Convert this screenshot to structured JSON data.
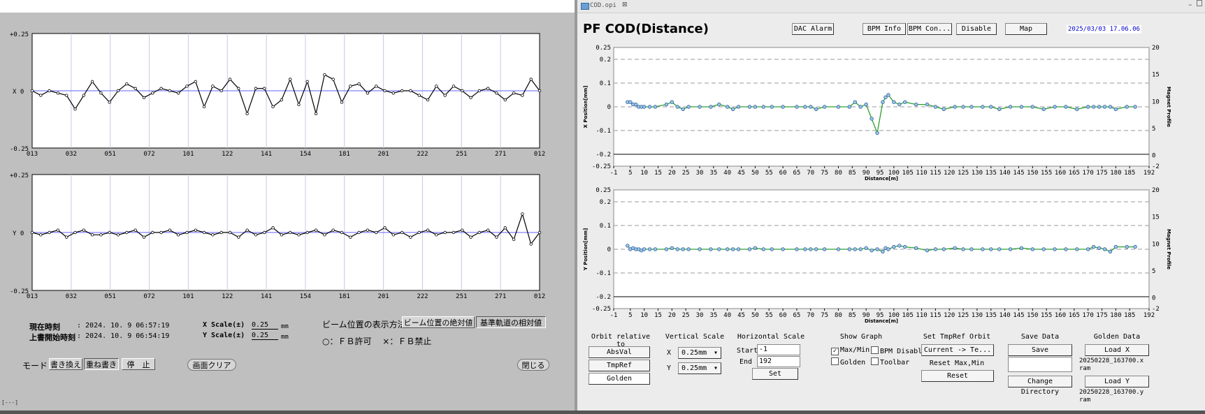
{
  "left_panel": {
    "plot_x": {
      "y_top": "+0.25",
      "y_mid": "X  0",
      "y_bot": "-0.25",
      "ticks": [
        "013",
        "032",
        "051",
        "072",
        "101",
        "122",
        "141",
        "154",
        "181",
        "201",
        "222",
        "251",
        "271",
        "012"
      ],
      "values": [
        0.0,
        -0.02,
        0.0,
        -0.01,
        -0.02,
        -0.08,
        -0.02,
        0.04,
        -0.01,
        -0.05,
        0.0,
        0.03,
        0.01,
        -0.03,
        -0.01,
        0.01,
        0.0,
        -0.01,
        0.02,
        0.04,
        -0.07,
        0.02,
        0.0,
        0.05,
        0.01,
        -0.1,
        0.01,
        0.01,
        -0.07,
        -0.04,
        0.05,
        -0.06,
        0.04,
        -0.1,
        0.07,
        0.05,
        -0.05,
        0.02,
        0.03,
        -0.01,
        0.02,
        0.0,
        -0.01,
        0.0,
        0.0,
        -0.02,
        -0.04,
        0.02,
        -0.02,
        0.02,
        0.0,
        -0.03,
        0.0,
        0.01,
        -0.01,
        -0.04,
        -0.01,
        -0.02,
        0.05,
        0.0
      ]
    },
    "plot_y": {
      "y_top": "+0.25",
      "y_mid": "Y  0",
      "y_bot": "-0.25",
      "ticks": [
        "013",
        "032",
        "051",
        "072",
        "101",
        "122",
        "141",
        "154",
        "181",
        "201",
        "222",
        "251",
        "271",
        "012"
      ],
      "values": [
        0.0,
        -0.01,
        0.0,
        0.01,
        -0.02,
        0.0,
        0.01,
        -0.01,
        -0.01,
        0.0,
        -0.01,
        0.0,
        0.01,
        -0.02,
        0.0,
        0.0,
        0.01,
        -0.01,
        0.0,
        0.01,
        0.0,
        -0.01,
        0.0,
        0.0,
        -0.02,
        0.01,
        -0.01,
        0.0,
        0.02,
        -0.01,
        0.0,
        -0.01,
        0.0,
        0.01,
        -0.01,
        0.01,
        0.0,
        -0.02,
        0.0,
        0.01,
        0.0,
        0.02,
        -0.01,
        0.0,
        -0.02,
        0.0,
        0.01,
        -0.01,
        0.0,
        0.0,
        0.01,
        -0.02,
        0.0,
        0.01,
        -0.02,
        0.02,
        -0.03,
        0.08,
        -0.05,
        0.0
      ]
    },
    "status": {
      "current_time_label": "現在時刻",
      "current_time_value": ": 2024. 10.  9    06:57:19",
      "overwrite_time_label": "上書開始時刻",
      "overwrite_time_value": ": 2024. 10.  9    06:54:19",
      "x_scale_label": "X  Scale(±)",
      "x_scale_value": "0.25",
      "y_scale_label": "Y  Scale(±)",
      "y_scale_value": "0.25",
      "unit": "mm",
      "display_method_label": "ビーム位置の表示方法",
      "abs_btn": "ビーム位置の絶対値",
      "rel_btn": "基準軌道の相対値",
      "legend_text": "○：ＦＢ許可　 ×：ＦＢ禁止"
    },
    "mode": {
      "label": "モード",
      "rewrite": "書き換え",
      "overwrite": "重ね書き",
      "stop": "停　止",
      "clear": "画面クリア",
      "close": "閉じる"
    },
    "corner_mark": "[---]"
  },
  "right_panel": {
    "tab_title": "COD.opi",
    "title": "PF COD(Distance)",
    "buttons": {
      "dac_alarm": "DAC Alarm",
      "bpm_info": "BPM Info",
      "bpm_con": "BPM Con...",
      "disable": "Disable",
      "map": "Map"
    },
    "timestamp": "2025/03/03 17.06.06",
    "x_chart": {
      "y_left_ticks": [
        "0.25",
        "0.2",
        "0.1",
        "0",
        "-0.1",
        "-0.2",
        "-0.25"
      ],
      "y_right_ticks": [
        "20",
        "15",
        "10",
        "5",
        "0",
        "-2"
      ],
      "ylabel": "X Position[mm]",
      "y2label": "Magnet Profile",
      "xlabel": "Distance[m]",
      "x_ticks": [
        "-1",
        "5",
        "10",
        "15",
        "20",
        "25",
        "30",
        "35",
        "40",
        "45",
        "50",
        "55",
        "60",
        "65",
        "70",
        "75",
        "80",
        "85",
        "90",
        "95",
        "100",
        "105",
        "110",
        "115",
        "120",
        "125",
        "130",
        "135",
        "140",
        "145",
        "150",
        "155",
        "160",
        "165",
        "170",
        "175",
        "180",
        "185",
        "192"
      ]
    },
    "y_chart": {
      "y_left_ticks": [
        "0.25",
        "0.2",
        "0.1",
        "0",
        "-0.1",
        "-0.2",
        "-0.25"
      ],
      "y_right_ticks": [
        "20",
        "15",
        "10",
        "5",
        "0",
        "-2"
      ],
      "ylabel": "Y Position[mm]",
      "y2label": "Magnet Profile",
      "xlabel": "Distance[m]",
      "x_ticks": [
        "-1",
        "5",
        "10",
        "15",
        "20",
        "25",
        "30",
        "35",
        "40",
        "45",
        "50",
        "55",
        "60",
        "65",
        "70",
        "75",
        "80",
        "85",
        "90",
        "95",
        "100",
        "105",
        "110",
        "115",
        "120",
        "125",
        "130",
        "135",
        "140",
        "145",
        "150",
        "155",
        "160",
        "165",
        "170",
        "175",
        "180",
        "185",
        "192"
      ]
    },
    "controls": {
      "orbit_relative_to": "Orbit relative to",
      "absval": "AbsVal",
      "tmpref": "TmpRef",
      "golden": "Golden",
      "vertical_scale": "Vertical Scale",
      "vs_x_label": "X",
      "vs_x_value": "0.25mm",
      "vs_y_label": "Y",
      "vs_y_value": "0.25mm",
      "horizontal_scale": "Horizontal Scale",
      "start_label": "Start",
      "start_value": "-1",
      "end_label": "End",
      "end_value": "192",
      "set": "Set",
      "show_graph": "Show Graph",
      "max_min": "Max/Min",
      "bpm_disable": "BPM Disable",
      "golden_chk": "Golden",
      "toolbar": "Toolbar",
      "set_tmpref_orbit": "Set TmpRef Orbit",
      "current_to": "Current -> Te...",
      "reset_max_min": "Reset Max,Min",
      "reset": "Reset",
      "save_data": "Save Data",
      "save": "Save",
      "change_directory": "Change Directory",
      "golden_data": "Golden Data",
      "load_x": "Load X",
      "load_x_file": "20250228_163700.x",
      "load_x_file2": "ram",
      "load_y": "Load Y",
      "load_y_file": "20250228_163700.y",
      "load_y_file2": "ram"
    }
  },
  "chart_data": [
    {
      "type": "line",
      "title": "PF COD(Distance)",
      "ylabel": "X Position[mm]",
      "xlabel": "Distance[m]",
      "xlim": [
        -1,
        192
      ],
      "ylim": [
        -0.25,
        0.25
      ],
      "x": [
        4,
        5,
        6,
        7,
        8,
        9,
        10,
        12,
        14,
        18,
        20,
        22,
        24,
        26,
        30,
        34,
        37,
        40,
        42,
        44,
        48,
        50,
        53,
        56,
        60,
        65,
        68,
        70,
        72,
        75,
        80,
        84,
        86,
        88,
        90,
        92,
        94,
        96,
        97,
        98,
        100,
        102,
        104,
        108,
        112,
        115,
        118,
        122,
        125,
        128,
        132,
        135,
        138,
        142,
        146,
        150,
        154,
        158,
        162,
        166,
        170,
        172,
        174,
        176,
        178,
        180,
        184,
        187
      ],
      "values": [
        0.02,
        0.02,
        0.01,
        0.01,
        0.0,
        0.0,
        0.0,
        0.0,
        0.0,
        0.01,
        0.02,
        0.0,
        -0.01,
        0.0,
        0.0,
        0.0,
        0.01,
        0.0,
        -0.01,
        0.0,
        0.0,
        0.0,
        0.0,
        0.0,
        0.0,
        0.0,
        0.0,
        0.0,
        -0.01,
        0.0,
        0.0,
        0.0,
        0.02,
        0.0,
        0.01,
        -0.05,
        -0.11,
        0.02,
        0.04,
        0.05,
        0.02,
        0.01,
        0.02,
        0.01,
        0.01,
        0.0,
        -0.01,
        0.0,
        0.0,
        0.0,
        0.0,
        0.0,
        -0.01,
        0.0,
        0.0,
        0.0,
        -0.01,
        0.0,
        0.0,
        -0.01,
        0.0,
        0.0,
        0.0,
        0.0,
        0.0,
        -0.01,
        0.0,
        0.0
      ]
    },
    {
      "type": "line",
      "ylabel": "Y Position[mm]",
      "xlabel": "Distance[m]",
      "xlim": [
        -1,
        192
      ],
      "ylim": [
        -0.25,
        0.25
      ],
      "x": [
        4,
        5,
        6,
        7,
        8,
        9,
        10,
        12,
        14,
        18,
        20,
        22,
        24,
        26,
        30,
        34,
        37,
        40,
        42,
        44,
        48,
        50,
        53,
        56,
        60,
        65,
        68,
        70,
        72,
        75,
        80,
        84,
        86,
        88,
        90,
        92,
        94,
        96,
        97,
        98,
        100,
        102,
        104,
        108,
        112,
        115,
        118,
        122,
        125,
        128,
        132,
        135,
        138,
        142,
        146,
        150,
        154,
        158,
        162,
        166,
        170,
        172,
        174,
        176,
        178,
        180,
        184,
        187
      ],
      "values": [
        0.015,
        0.0,
        0.005,
        0.0,
        0.0,
        -0.005,
        0.0,
        0.0,
        0.0,
        0.0,
        0.005,
        0.0,
        0.0,
        0.0,
        0.0,
        0.0,
        0.0,
        0.0,
        0.0,
        0.0,
        0.0,
        0.005,
        0.0,
        0.0,
        0.0,
        0.0,
        0.0,
        0.0,
        0.0,
        0.0,
        0.0,
        0.0,
        0.0,
        0.0,
        0.005,
        -0.005,
        0.0,
        -0.01,
        0.005,
        0.0,
        0.01,
        0.015,
        0.01,
        0.005,
        -0.005,
        0.0,
        0.0,
        0.005,
        0.0,
        0.0,
        0.0,
        0.0,
        0.0,
        0.0,
        0.005,
        0.0,
        0.0,
        0.0,
        0.0,
        0.0,
        0.0,
        0.01,
        0.005,
        0.0,
        -0.01,
        0.01,
        0.01,
        0.01
      ]
    }
  ]
}
